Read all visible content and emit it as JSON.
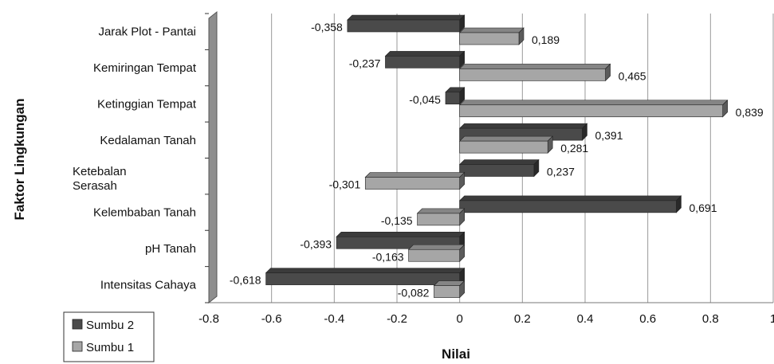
{
  "chart_data": {
    "type": "bar",
    "orientation": "horizontal",
    "style": "3d",
    "xlabel": "Nilai",
    "ylabel": "Faktor Lingkungan",
    "xlim": [
      -0.8,
      1
    ],
    "x_ticks": [
      "-0.8",
      "-0.6",
      "-0.4",
      "-0.2",
      "0",
      "0.2",
      "0.4",
      "0.6",
      "0.8",
      "1"
    ],
    "grid": "vertical",
    "legend_position": "bottom-left",
    "categories": [
      "Jarak Plot - Pantai",
      "Kemiringan Tempat",
      "Ketinggian Tempat",
      "Kedalaman Tanah",
      "Ketebalan Serasah",
      "Kelembaban Tanah",
      "pH Tanah",
      "Intensitas Cahaya"
    ],
    "series": [
      {
        "name": "Sumbu 2",
        "color": "#4a4a4a",
        "values": [
          -0.358,
          -0.237,
          -0.045,
          0.391,
          0.237,
          0.691,
          -0.393,
          -0.618
        ],
        "labels": [
          "-0,358",
          "-0,237",
          "-0,045",
          "0,391",
          "0,237",
          "0,691",
          "-0,393",
          "-0,618"
        ]
      },
      {
        "name": "Sumbu 1",
        "color": "#a6a6a6",
        "values": [
          0.189,
          0.465,
          0.839,
          0.281,
          -0.301,
          -0.135,
          -0.163,
          -0.082
        ],
        "labels": [
          "0,189",
          "0,465",
          "0,839",
          "0,281",
          "-0,301",
          "-0,135",
          "-0,163",
          "-0,082"
        ]
      }
    ]
  }
}
